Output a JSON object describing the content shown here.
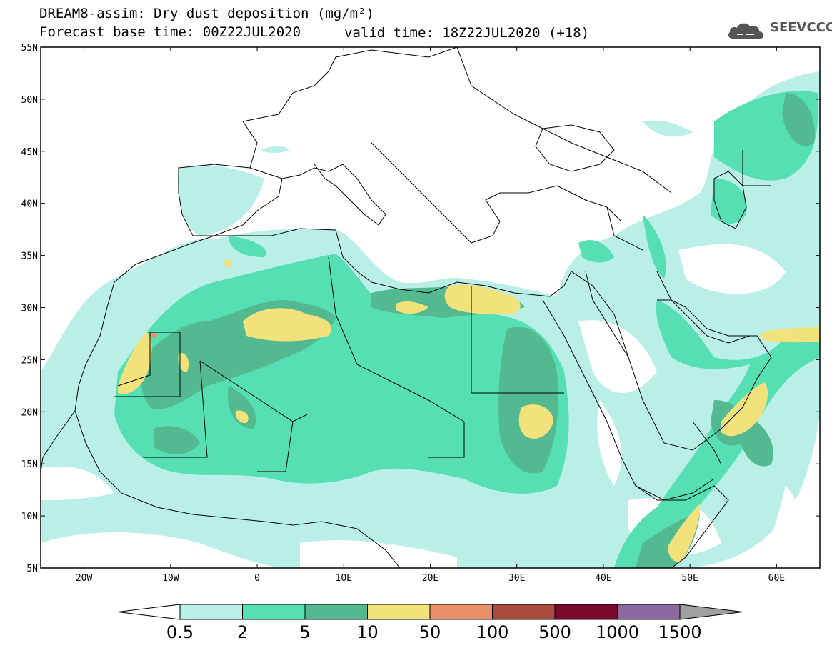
{
  "title": {
    "line1": "DREAM8-assim: Dry dust deposition (mg/m²)",
    "line2": "Forecast base time: 00Z22JUL2020",
    "valid": "valid time: 18Z22JUL2020 (+18)"
  },
  "logo": {
    "text": "SEEVCCC",
    "icon": "cloud-icon"
  },
  "map": {
    "lon_range": [
      -25,
      65
    ],
    "lat_range": [
      5,
      55
    ],
    "lat_labels": [
      "55N",
      "50N",
      "45N",
      "40N",
      "35N",
      "30N",
      "25N",
      "20N",
      "15N",
      "10N",
      "5N"
    ],
    "lon_labels": [
      "20W",
      "10W",
      "0",
      "10E",
      "20E",
      "30E",
      "40E",
      "50E",
      "60E"
    ]
  },
  "colorbar": {
    "levels": [
      "0.5",
      "2",
      "5",
      "10",
      "50",
      "100",
      "500",
      "1000",
      "1500"
    ],
    "colors": [
      "#b9efe6",
      "#55dfb3",
      "#53b990",
      "#f1e27c",
      "#e9906a",
      "#a84b3e",
      "#7a0a2c",
      "#8c69a0",
      "#a0a0a0"
    ],
    "under_color": "#ffffff",
    "over_color": "#a0a0a0"
  }
}
